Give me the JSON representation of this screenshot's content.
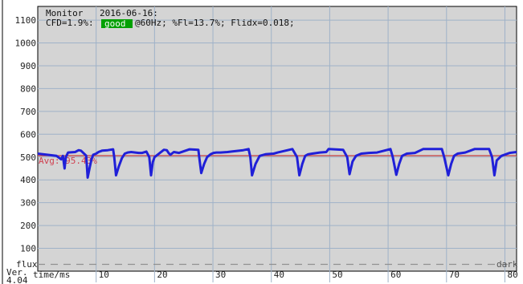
{
  "header": {
    "line1_prefix": "Monitor",
    "date": "2016-06-16:",
    "cfd_text": "CFD=1.9%:",
    "badge": "good",
    "rest_text": "@60Hz; %Fl=13.7%; Flidx=0.018;"
  },
  "colors": {
    "plot_bg": "#d4d4d4",
    "grid": "#9fb2c8",
    "signal": "#2020d8",
    "avg_line": "#c84848",
    "avg_text": "#d04050",
    "badge_bg": "#00a000",
    "flux_line": "#909090"
  },
  "labels": {
    "avg": "Avg: 95.43%",
    "flux": "flux",
    "dark": "dark",
    "version": "Ver.",
    "version_num": "4.04",
    "x_axis": "time/ms"
  },
  "chart_data": {
    "type": "line",
    "xlabel": "time/ms",
    "ylabel": "",
    "xlim": [
      0,
      82
    ],
    "ylim": [
      0,
      1160
    ],
    "y_ticks": [
      100,
      200,
      300,
      400,
      500,
      600,
      700,
      800,
      900,
      1000,
      1100
    ],
    "x_ticks": [
      10,
      20,
      30,
      40,
      50,
      60,
      70,
      80
    ],
    "grid": true,
    "frequency_hz": 60,
    "average_level": 506,
    "average_label": "Avg: 95.43%",
    "flux_level": 30,
    "series": [
      {
        "x": [
          0,
          3.2,
          4.0,
          4.3,
          4.6,
          4.8,
          5.2,
          6.4,
          7.0,
          7.4,
          8.3,
          8.55,
          8.9,
          9.2,
          9.5,
          10.0,
          10.4,
          11.0,
          12.0,
          12.9,
          13.1,
          13.4,
          13.9,
          14.4,
          14.9,
          15.4,
          16.0,
          16.7,
          17.3,
          17.9,
          18.6,
          19.1,
          19.4,
          19.7,
          20.0,
          21.6,
          22.1,
          22.4,
          22.7,
          23.3,
          24.2,
          26.0,
          27.5,
          27.7,
          28.0,
          28.5,
          29.0,
          29.6,
          30.1,
          30.6,
          31.3,
          32.5,
          33.2,
          35.2,
          36.1,
          36.4,
          36.7,
          37.3,
          38.0,
          39.0,
          40.4,
          41.1,
          43.6,
          44.4,
          44.8,
          45.3,
          45.8,
          46.3,
          47.0,
          48.3,
          49.4,
          49.8,
          52.3,
          53.0,
          53.4,
          53.9,
          54.5,
          55.4,
          56.7,
          58.1,
          60.4,
          60.8,
          61.4,
          61.9,
          62.4,
          63.2,
          64.6,
          66.0,
          69.2,
          69.6,
          70.3,
          70.8,
          71.3,
          71.9,
          73.2,
          74.8,
          77.3,
          77.8,
          78.2,
          78.6,
          79.4,
          80.8,
          82.0
        ],
        "y": [
          515,
          505,
          490,
          505,
          450,
          500,
          520,
          522,
          530,
          528,
          506,
          410,
          455,
          490,
          510,
          515,
          522,
          528,
          530,
          534,
          500,
          420,
          460,
          495,
          515,
          520,
          522,
          520,
          518,
          518,
          524,
          500,
          420,
          478,
          500,
          532,
          530,
          518,
          510,
          522,
          518,
          534,
          532,
          490,
          430,
          470,
          500,
          512,
          518,
          520,
          520,
          522,
          524,
          530,
          535,
          500,
          420,
          470,
          505,
          512,
          515,
          520,
          535,
          500,
          420,
          470,
          505,
          512,
          515,
          520,
          522,
          535,
          532,
          500,
          425,
          480,
          505,
          515,
          518,
          520,
          535,
          500,
          422,
          470,
          505,
          515,
          518,
          535,
          535,
          500,
          420,
          470,
          505,
          515,
          520,
          535,
          535,
          500,
          420,
          485,
          505,
          518,
          522
        ]
      }
    ]
  }
}
